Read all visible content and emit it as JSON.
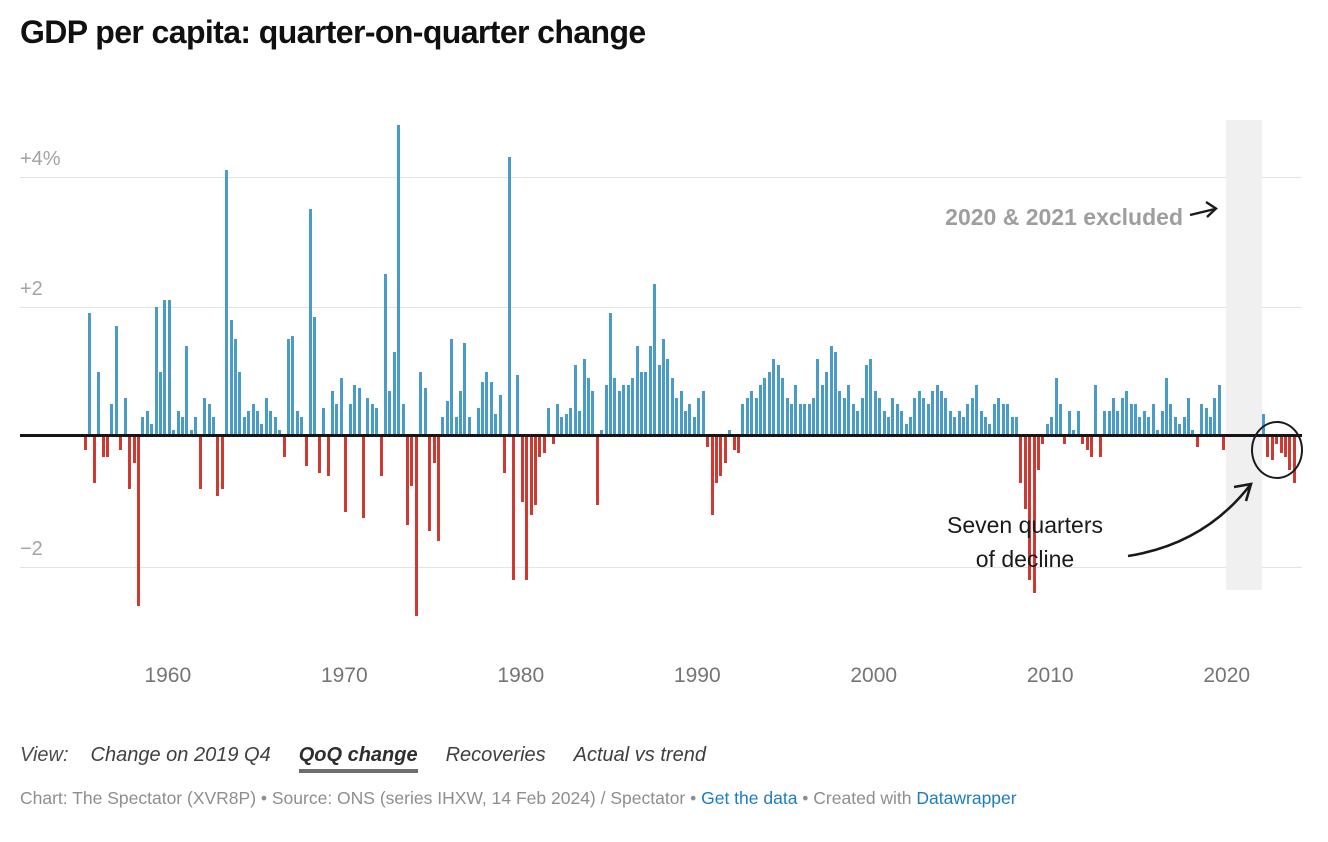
{
  "title": "GDP per capita: quarter-on-quarter change",
  "annotations": {
    "excluded_note": "2020 & 2021 excluded",
    "excluded_arrow_icon": "right-arrow",
    "decline_note_line1": "Seven quarters",
    "decline_note_line2": "of decline",
    "decline_arrow_icon": "curved-arrow",
    "decline_circle": "ellipse-highlight-around-final-seven-red-bars"
  },
  "view_bar": {
    "label": "View:",
    "options": [
      {
        "label": "Change on 2019 Q4",
        "selected": false
      },
      {
        "label": "QoQ change",
        "selected": true
      },
      {
        "label": "Recoveries",
        "selected": false
      },
      {
        "label": "Actual vs trend",
        "selected": false
      }
    ]
  },
  "attribution": {
    "prefix": "Chart: The Spectator (XVR8P) • Source: ONS (series IHXW, 14 Feb 2024) / Spectator • ",
    "link_get_data": "Get the data",
    "middle": " • Created with ",
    "link_datawrapper": "Datawrapper"
  },
  "colors": {
    "positive_bar": "#4a9cc8",
    "negative_bar": "#ce3a32",
    "excluded_band": "#f0f0f0",
    "zero_line": "#151515",
    "gridline": "#e4e4e4",
    "link": "#1d7dc2",
    "muted_note": "#9e9e9e"
  },
  "chart_data": {
    "type": "bar",
    "title": "GDP per capita: quarter-on-quarter change",
    "unit": "% change on previous quarter",
    "frequency": "quarterly",
    "start": "1955-Q2",
    "end": "2023-Q4",
    "excluded_period": "2020-Q1 to 2021-Q4 shown as gap (grey band)",
    "xlabel": "",
    "ylabel": "",
    "ylim": [
      -3.1,
      5.0
    ],
    "grid": true,
    "y_ticks": [
      {
        "label": "+4%",
        "value": 4
      },
      {
        "label": "+2",
        "value": 2
      },
      {
        "label": "−2",
        "value": -2
      }
    ],
    "x_ticks": [
      1960,
      1970,
      1980,
      1990,
      2000,
      2010,
      2020
    ],
    "values_by_year": [
      {
        "year": 1955,
        "quarters": [
          "Q2",
          "Q3",
          "Q4"
        ],
        "v": [
          -0.2,
          1.9,
          -0.7
        ]
      },
      {
        "year": 1956,
        "v": [
          1.0,
          -0.3,
          -0.3,
          0.5
        ]
      },
      {
        "year": 1957,
        "v": [
          1.7,
          -0.2,
          0.6,
          -0.8
        ]
      },
      {
        "year": 1958,
        "v": [
          -0.4,
          -2.6,
          0.3,
          0.4
        ]
      },
      {
        "year": 1959,
        "v": [
          0.2,
          2.0,
          1.0,
          2.1
        ]
      },
      {
        "year": 1960,
        "v": [
          2.1,
          0.1,
          0.4,
          0.3
        ]
      },
      {
        "year": 1961,
        "v": [
          1.4,
          0.1,
          0.3,
          -0.8
        ]
      },
      {
        "year": 1962,
        "v": [
          0.6,
          0.5,
          0.3,
          -0.9
        ]
      },
      {
        "year": 1963,
        "v": [
          -0.8,
          4.1,
          1.8,
          1.5
        ]
      },
      {
        "year": 1964,
        "v": [
          1.0,
          0.3,
          0.4,
          0.5
        ]
      },
      {
        "year": 1965,
        "v": [
          0.4,
          0.2,
          0.6,
          0.4
        ]
      },
      {
        "year": 1966,
        "v": [
          0.3,
          0.1,
          -0.3,
          1.5
        ]
      },
      {
        "year": 1967,
        "v": [
          1.55,
          0.4,
          0.3,
          -0.45
        ]
      },
      {
        "year": 1968,
        "v": [
          3.5,
          1.85,
          -0.55,
          0.45
        ]
      },
      {
        "year": 1969,
        "v": [
          -0.6,
          0.7,
          0.5,
          0.9
        ]
      },
      {
        "year": 1970,
        "v": [
          -1.15,
          0.5,
          0.8,
          0.75
        ]
      },
      {
        "year": 1971,
        "v": [
          -1.25,
          0.6,
          0.5,
          0.45
        ]
      },
      {
        "year": 1972,
        "v": [
          -0.6,
          2.5,
          0.7,
          1.3
        ]
      },
      {
        "year": 1973,
        "v": [
          4.8,
          0.5,
          -1.35,
          -0.75
        ]
      },
      {
        "year": 1974,
        "v": [
          -2.75,
          1.0,
          0.75,
          -1.45
        ]
      },
      {
        "year": 1975,
        "v": [
          -0.4,
          -1.6,
          0.3,
          0.55
        ]
      },
      {
        "year": 1976,
        "v": [
          1.5,
          0.3,
          0.7,
          1.45
        ]
      },
      {
        "year": 1977,
        "v": [
          0.3,
          0.05,
          0.45,
          0.85
        ]
      },
      {
        "year": 1978,
        "v": [
          1.0,
          0.85,
          0.35,
          0.65
        ]
      },
      {
        "year": 1979,
        "v": [
          -0.55,
          4.3,
          -2.2,
          0.95
        ]
      },
      {
        "year": 1980,
        "v": [
          -1.0,
          -2.2,
          -1.2,
          -1.05
        ]
      },
      {
        "year": 1981,
        "v": [
          -0.3,
          -0.25,
          0.45,
          -0.1
        ]
      },
      {
        "year": 1982,
        "v": [
          0.5,
          0.3,
          0.35,
          0.45
        ]
      },
      {
        "year": 1983,
        "v": [
          1.1,
          0.4,
          1.2,
          0.9
        ]
      },
      {
        "year": 1984,
        "v": [
          0.7,
          -1.05,
          0.1,
          0.8
        ]
      },
      {
        "year": 1985,
        "v": [
          1.9,
          0.9,
          0.7,
          0.8
        ]
      },
      {
        "year": 1986,
        "v": [
          0.8,
          0.9,
          1.4,
          1.0
        ]
      },
      {
        "year": 1987,
        "v": [
          1.0,
          1.4,
          2.35,
          1.1
        ]
      },
      {
        "year": 1988,
        "v": [
          1.5,
          1.2,
          0.9,
          0.6
        ]
      },
      {
        "year": 1989,
        "v": [
          0.7,
          0.4,
          0.5,
          0.3
        ]
      },
      {
        "year": 1990,
        "v": [
          0.6,
          0.7,
          -0.15,
          -1.2
        ]
      },
      {
        "year": 1991,
        "v": [
          -0.7,
          -0.6,
          -0.4,
          0.1
        ]
      },
      {
        "year": 1992,
        "v": [
          -0.2,
          -0.25,
          0.5,
          0.6
        ]
      },
      {
        "year": 1993,
        "v": [
          0.7,
          0.6,
          0.8,
          0.9
        ]
      },
      {
        "year": 1994,
        "v": [
          1.0,
          1.2,
          1.1,
          0.9
        ]
      },
      {
        "year": 1995,
        "v": [
          0.6,
          0.5,
          0.8,
          0.5
        ]
      },
      {
        "year": 1996,
        "v": [
          0.5,
          0.5,
          0.6,
          1.2
        ]
      },
      {
        "year": 1997,
        "v": [
          0.8,
          1.0,
          1.4,
          1.3
        ]
      },
      {
        "year": 1998,
        "v": [
          0.7,
          0.6,
          0.8,
          0.5
        ]
      },
      {
        "year": 1999,
        "v": [
          0.4,
          0.6,
          1.1,
          1.2
        ]
      },
      {
        "year": 2000,
        "v": [
          0.7,
          0.6,
          0.4,
          0.3
        ]
      },
      {
        "year": 2001,
        "v": [
          0.6,
          0.5,
          0.4,
          0.2
        ]
      },
      {
        "year": 2002,
        "v": [
          0.3,
          0.6,
          0.7,
          0.6
        ]
      },
      {
        "year": 2003,
        "v": [
          0.5,
          0.7,
          0.8,
          0.7
        ]
      },
      {
        "year": 2004,
        "v": [
          0.6,
          0.4,
          0.3,
          0.4
        ]
      },
      {
        "year": 2005,
        "v": [
          0.3,
          0.5,
          0.6,
          0.8
        ]
      },
      {
        "year": 2006,
        "v": [
          0.4,
          0.3,
          0.2,
          0.5
        ]
      },
      {
        "year": 2007,
        "v": [
          0.6,
          0.5,
          0.5,
          0.3
        ]
      },
      {
        "year": 2008,
        "v": [
          0.3,
          -0.7,
          -1.1,
          -2.2
        ]
      },
      {
        "year": 2009,
        "v": [
          -2.4,
          -0.5,
          -0.1,
          0.2
        ]
      },
      {
        "year": 2010,
        "v": [
          0.3,
          0.9,
          0.5,
          -0.1
        ]
      },
      {
        "year": 2011,
        "v": [
          0.4,
          0.1,
          0.4,
          -0.1
        ]
      },
      {
        "year": 2012,
        "v": [
          -0.2,
          -0.3,
          0.8,
          -0.3
        ]
      },
      {
        "year": 2013,
        "v": [
          0.4,
          0.4,
          0.6,
          0.4
        ]
      },
      {
        "year": 2014,
        "v": [
          0.6,
          0.7,
          0.5,
          0.5
        ]
      },
      {
        "year": 2015,
        "v": [
          0.3,
          0.4,
          0.3,
          0.5
        ]
      },
      {
        "year": 2016,
        "v": [
          0.1,
          0.4,
          0.9,
          0.5
        ]
      },
      {
        "year": 2017,
        "v": [
          0.3,
          0.2,
          0.3,
          0.6
        ]
      },
      {
        "year": 2018,
        "v": [
          0.1,
          -0.15,
          0.5,
          0.45
        ]
      },
      {
        "year": 2019,
        "v": [
          0.3,
          0.6,
          0.8,
          -0.2
        ]
      },
      {
        "year": 2020,
        "v": [
          null,
          null,
          null,
          null
        ]
      },
      {
        "year": 2021,
        "v": [
          null,
          null,
          null,
          null
        ]
      },
      {
        "year": 2022,
        "v": [
          0.35,
          -0.3,
          -0.35,
          -0.1
        ]
      },
      {
        "year": 2023,
        "v": [
          -0.25,
          -0.3,
          -0.5,
          -0.7
        ]
      }
    ],
    "legend": "none",
    "annotations": [
      "2020 & 2021 excluded",
      "Seven quarters of decline"
    ]
  }
}
